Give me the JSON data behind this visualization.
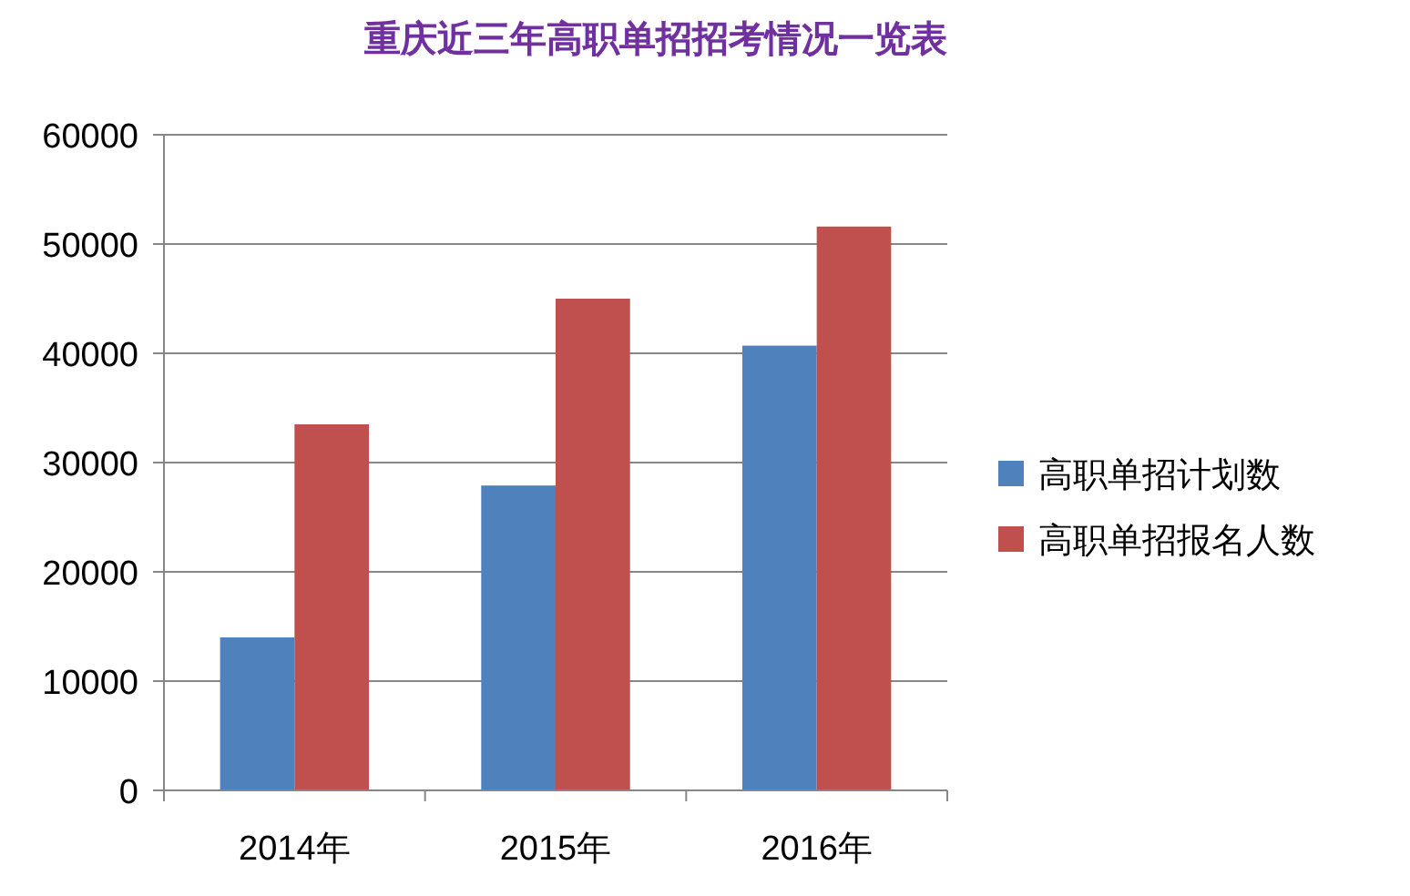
{
  "chart_data": {
    "type": "bar",
    "title": "重庆近三年高职单招招考情况一览表",
    "categories": [
      "2014年",
      "2015年",
      "2016年"
    ],
    "series": [
      {
        "name": "高职单招计划数",
        "color": "#4f81bd",
        "values": [
          14000,
          27900,
          40700
        ]
      },
      {
        "name": "高职单招报名人数",
        "color": "#c0504d",
        "values": [
          33500,
          45000,
          51600
        ]
      }
    ],
    "ylim": [
      0,
      60000
    ],
    "yticks": [
      0,
      10000,
      20000,
      30000,
      40000,
      50000,
      60000
    ],
    "grid": "y",
    "legend": "right"
  }
}
